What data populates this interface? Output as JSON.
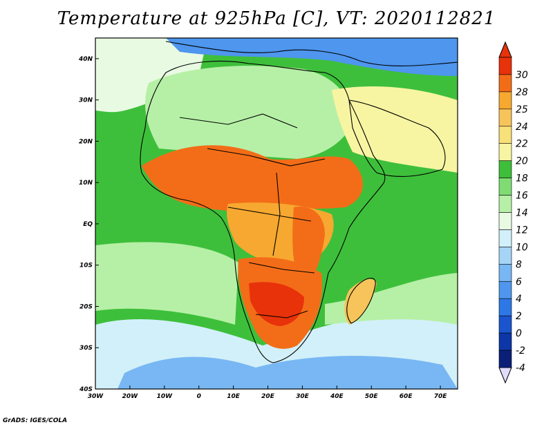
{
  "title": "Temperature at 925hPa [C], VT: 2020112821",
  "credit": "GrADS: IGES/COLA",
  "chart_data": {
    "type": "heatmap",
    "title": "Temperature at 925hPa [C], VT: 2020112821",
    "variable": "Temperature at 925hPa",
    "units": "C",
    "valid_time": "2020112821",
    "region": "Africa",
    "lon_range": [
      -30,
      75
    ],
    "lat_range": [
      -40,
      45
    ],
    "x_ticks": [
      {
        "value": -30,
        "label": "30W"
      },
      {
        "value": -20,
        "label": "20W"
      },
      {
        "value": -10,
        "label": "10W"
      },
      {
        "value": 0,
        "label": "0"
      },
      {
        "value": 10,
        "label": "10E"
      },
      {
        "value": 20,
        "label": "20E"
      },
      {
        "value": 30,
        "label": "30E"
      },
      {
        "value": 40,
        "label": "40E"
      },
      {
        "value": 50,
        "label": "50E"
      },
      {
        "value": 60,
        "label": "60E"
      },
      {
        "value": 70,
        "label": "70E"
      }
    ],
    "y_ticks": [
      {
        "value": 40,
        "label": "40N"
      },
      {
        "value": 30,
        "label": "30N"
      },
      {
        "value": 20,
        "label": "20N"
      },
      {
        "value": 10,
        "label": "10N"
      },
      {
        "value": 0,
        "label": "EQ"
      },
      {
        "value": -10,
        "label": "10S"
      },
      {
        "value": -20,
        "label": "20S"
      },
      {
        "value": -30,
        "label": "30S"
      },
      {
        "value": -40,
        "label": "40S"
      }
    ],
    "colorbar": {
      "levels": [
        -4,
        -2,
        0,
        2,
        4,
        6,
        8,
        10,
        12,
        14,
        16,
        18,
        20,
        22,
        24,
        25,
        28,
        30
      ],
      "labels": [
        "-4",
        "-2",
        "0",
        "2",
        "4",
        "6",
        "8",
        "10",
        "12",
        "14",
        "16",
        "18",
        "20",
        "22",
        "24",
        "25",
        "28",
        "30"
      ],
      "colors": [
        "#0b1e78",
        "#0d36a8",
        "#1a55cf",
        "#2d78e6",
        "#4e96ee",
        "#78b7f3",
        "#a6d4f7",
        "#d2f0f9",
        "#e8fbe2",
        "#b6f0a6",
        "#7fdc73",
        "#3ebf3b",
        "#f7f5a2",
        "#f8e07a",
        "#f6c45a",
        "#f7a830",
        "#f36d18",
        "#e8320a"
      ],
      "over_color": "#e8320a",
      "under_color": "#e0dcfc"
    },
    "field_regions": [
      {
        "name": "background-ocean",
        "temp": 18
      },
      {
        "name": "southern-ocean-cold",
        "temp": 10
      },
      {
        "name": "southern-ocean-colder",
        "temp": 6
      },
      {
        "name": "south-atlantic-cool",
        "temp": 15
      },
      {
        "name": "south-indian-cool",
        "temp": 15
      },
      {
        "name": "north-atlantic-cool",
        "temp": 12
      },
      {
        "name": "europe-cold",
        "temp": 4
      },
      {
        "name": "north-africa-mild",
        "temp": 15
      },
      {
        "name": "arabia-warm",
        "temp": 21
      },
      {
        "name": "sahel-hot",
        "temp": 28
      },
      {
        "name": "central-africa-warm",
        "temp": 25
      },
      {
        "name": "great-lakes-hot",
        "temp": 28
      },
      {
        "name": "southern-africa-hot",
        "temp": 28
      },
      {
        "name": "kalahari-very-hot",
        "temp": 30
      },
      {
        "name": "madagascar-warm",
        "temp": 24
      }
    ]
  }
}
